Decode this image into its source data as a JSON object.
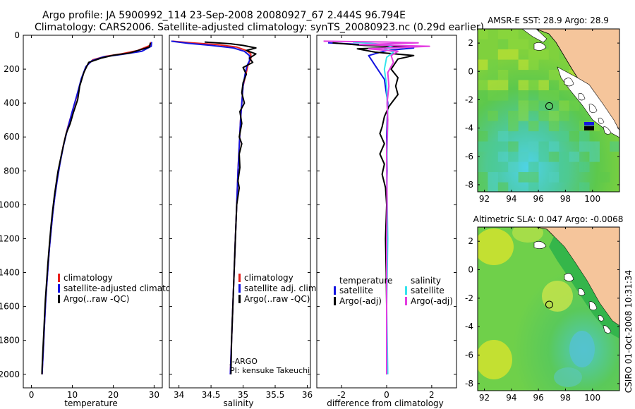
{
  "header": {
    "line1": "Argo profile: JA 5900992_114 23-Sep-2008 20080927_67 2.444S 96.794E",
    "line2": "Climatology: CARS2006. Satellite-adjusted climatology: synTS_20080923.nc (0.29d earlier)"
  },
  "side_label": "CSIRO 01-Oct-2008 10:31:34",
  "colors": {
    "red": "#e8211d",
    "blue": "#1414e0",
    "black": "#000000",
    "cyan": "#35e3ec",
    "magenta": "#e33de0",
    "land": "#f5c59b",
    "sea_green": "#4cc34c",
    "sea_yellow": "#dfe52b",
    "sea_cyan": "#4ed3e6"
  },
  "chart_data": [
    {
      "type": "line",
      "xlabel": "temperature",
      "xlim": [
        -2,
        32
      ],
      "ylim": [
        2080,
        0
      ],
      "xticks": [
        "0",
        "10",
        "20",
        "30"
      ],
      "yticks": [
        "0",
        "200",
        "400",
        "600",
        "800",
        "1000",
        "1200",
        "1400",
        "1600",
        "1800",
        "2000"
      ],
      "legend": [
        {
          "label": "climatology",
          "color": "#e8211d"
        },
        {
          "label": "satellite-adjusted climatology",
          "color": "#1414e0"
        },
        {
          "label": "Argo(..raw -QC)",
          "color": "#000000"
        }
      ],
      "series": [
        {
          "name": "climatology",
          "color": "#e8211d",
          "points": [
            [
              29.2,
              40
            ],
            [
              29.0,
              60
            ],
            [
              26,
              90
            ],
            [
              22,
              110
            ],
            [
              18,
              125
            ],
            [
              15,
              145
            ],
            [
              13.5,
              180
            ],
            [
              12.3,
              250
            ],
            [
              11.2,
              350
            ],
            [
              10.0,
              450
            ],
            [
              8.8,
              550
            ],
            [
              7.8,
              650
            ],
            [
              7.0,
              750
            ],
            [
              6.3,
              850
            ],
            [
              5.7,
              950
            ],
            [
              5.2,
              1050
            ],
            [
              4.8,
              1150
            ],
            [
              4.4,
              1250
            ],
            [
              4.1,
              1350
            ],
            [
              3.8,
              1450
            ],
            [
              3.5,
              1550
            ],
            [
              3.3,
              1650
            ],
            [
              3.1,
              1750
            ],
            [
              2.9,
              1850
            ],
            [
              2.7,
              1950
            ],
            [
              2.6,
              2000
            ]
          ]
        },
        {
          "name": "satellite-adjusted climatology",
          "color": "#1414e0",
          "points": [
            [
              29.4,
              40
            ],
            [
              29.3,
              65
            ],
            [
              27,
              95
            ],
            [
              22,
              113
            ],
            [
              17.5,
              128
            ],
            [
              14.8,
              150
            ],
            [
              13.3,
              185
            ],
            [
              12.2,
              255
            ],
            [
              11.1,
              355
            ],
            [
              9.9,
              455
            ],
            [
              8.8,
              555
            ],
            [
              7.8,
              655
            ],
            [
              7.0,
              755
            ],
            [
              6.3,
              855
            ],
            [
              5.7,
              955
            ],
            [
              5.2,
              1055
            ],
            [
              4.8,
              1155
            ],
            [
              4.4,
              1255
            ],
            [
              4.1,
              1355
            ],
            [
              3.8,
              1455
            ],
            [
              3.5,
              1555
            ],
            [
              3.3,
              1655
            ],
            [
              3.1,
              1755
            ],
            [
              2.9,
              1855
            ],
            [
              2.7,
              1955
            ],
            [
              2.6,
              2000
            ]
          ]
        },
        {
          "name": "Argo(..raw -QC)",
          "color": "#000000",
          "points": [
            [
              29.1,
              45
            ],
            [
              28.8,
              70
            ],
            [
              24,
              105
            ],
            [
              20,
              118
            ],
            [
              17,
              135
            ],
            [
              14,
              160
            ],
            [
              12.8,
              220
            ],
            [
              11.8,
              300
            ],
            [
              11.3,
              380
            ],
            [
              10.2,
              460
            ],
            [
              9.5,
              520
            ],
            [
              8.5,
              580
            ],
            [
              7.9,
              640
            ],
            [
              7.2,
              720
            ],
            [
              6.5,
              800
            ],
            [
              6.0,
              880
            ],
            [
              5.6,
              950
            ],
            [
              5.2,
              1030
            ],
            [
              4.8,
              1120
            ],
            [
              4.4,
              1230
            ],
            [
              4.0,
              1350
            ],
            [
              3.7,
              1460
            ],
            [
              3.4,
              1560
            ],
            [
              3.2,
              1660
            ],
            [
              3.0,
              1760
            ],
            [
              2.8,
              1860
            ],
            [
              2.6,
              1960
            ],
            [
              2.55,
              2000
            ]
          ]
        }
      ]
    },
    {
      "type": "line",
      "xlabel": "salinity",
      "xlim": [
        33.85,
        36.05
      ],
      "ylim": [
        2080,
        0
      ],
      "xticks": [
        "34",
        "34.5",
        "35",
        "35.5",
        "36"
      ],
      "legend": [
        {
          "label": "climatology",
          "color": "#e8211d"
        },
        {
          "label": "satellite adj. clim.",
          "color": "#1414e0"
        },
        {
          "label": "Argo(..raw -QC)",
          "color": "#000000"
        }
      ],
      "annotation": [
        "J-ARGO",
        "PI: kensuke Takeuchi"
      ],
      "series": [
        {
          "name": "climatology",
          "color": "#e8211d",
          "points": [
            [
              33.9,
              35
            ],
            [
              34.2,
              45
            ],
            [
              34.6,
              55
            ],
            [
              34.9,
              70
            ],
            [
              35.05,
              90
            ],
            [
              35.12,
              110
            ],
            [
              35.12,
              140
            ],
            [
              35.08,
              170
            ],
            [
              35.05,
              220
            ],
            [
              35.0,
              300
            ],
            [
              34.98,
              400
            ],
            [
              34.96,
              500
            ],
            [
              34.94,
              650
            ],
            [
              34.92,
              800
            ],
            [
              34.9,
              1000
            ],
            [
              34.88,
              1200
            ],
            [
              34.86,
              1400
            ],
            [
              34.84,
              1600
            ],
            [
              34.82,
              1800
            ],
            [
              34.8,
              2000
            ]
          ]
        },
        {
          "name": "satellite adj. clim.",
          "color": "#1414e0",
          "points": [
            [
              33.88,
              35
            ],
            [
              34.15,
              48
            ],
            [
              34.5,
              60
            ],
            [
              34.85,
              75
            ],
            [
              35.02,
              95
            ],
            [
              35.1,
              120
            ],
            [
              35.1,
              150
            ],
            [
              35.06,
              180
            ],
            [
              35.03,
              230
            ],
            [
              35.0,
              300
            ],
            [
              34.98,
              400
            ],
            [
              34.96,
              500
            ],
            [
              34.94,
              650
            ],
            [
              34.92,
              800
            ],
            [
              34.9,
              1000
            ],
            [
              34.88,
              1200
            ],
            [
              34.86,
              1400
            ],
            [
              34.84,
              1600
            ],
            [
              34.82,
              1800
            ],
            [
              34.8,
              2000
            ]
          ]
        },
        {
          "name": "Argo(..raw -QC)",
          "color": "#000000",
          "points": [
            [
              34.4,
              40
            ],
            [
              34.8,
              50
            ],
            [
              35.0,
              60
            ],
            [
              35.2,
              75
            ],
            [
              35.05,
              90
            ],
            [
              35.2,
              110
            ],
            [
              35.1,
              135
            ],
            [
              35.15,
              160
            ],
            [
              35.0,
              190
            ],
            [
              35.05,
              230
            ],
            [
              35.0,
              280
            ],
            [
              34.98,
              340
            ],
            [
              35.02,
              400
            ],
            [
              34.95,
              450
            ],
            [
              34.98,
              520
            ],
            [
              34.94,
              600
            ],
            [
              34.98,
              640
            ],
            [
              34.94,
              700
            ],
            [
              34.95,
              780
            ],
            [
              34.92,
              860
            ],
            [
              34.94,
              900
            ],
            [
              34.9,
              1000
            ],
            [
              34.88,
              1200
            ],
            [
              34.86,
              1400
            ],
            [
              34.84,
              1600
            ],
            [
              34.82,
              1800
            ],
            [
              34.81,
              2000
            ]
          ]
        }
      ]
    },
    {
      "type": "line",
      "xlabel": "difference from climatology",
      "xlim": [
        -3.1,
        3.1
      ],
      "ylim": [
        2080,
        0
      ],
      "xticks": [
        "-2",
        "0",
        "2"
      ],
      "legend_titles": [
        "temperature",
        "salinity"
      ],
      "legend": [
        {
          "label": "satellite",
          "color": "#1414e0",
          "group": "temperature"
        },
        {
          "label": "Argo(-adj)",
          "color": "#000000",
          "group": "temperature"
        },
        {
          "label": "satellite",
          "color": "#35e3ec",
          "group": "salinity"
        },
        {
          "label": "Argo(-adj)",
          "color": "#e33de0",
          "group": "salinity"
        }
      ],
      "series": [
        {
          "name": "temperature satellite",
          "color": "#1414e0",
          "points": [
            [
              -2.6,
              45
            ],
            [
              -1,
              55
            ],
            [
              0.8,
              65
            ],
            [
              1.2,
              75
            ],
            [
              0,
              90
            ],
            [
              -0.8,
              120
            ],
            [
              -0.5,
              180
            ],
            [
              -0.1,
              260
            ],
            [
              0.05,
              400
            ],
            [
              0.0,
              600
            ],
            [
              0.02,
              800
            ],
            [
              0.0,
              1000
            ],
            [
              0.0,
              1500
            ],
            [
              0.0,
              2000
            ]
          ]
        },
        {
          "name": "temperature Argo(-adj)",
          "color": "#000000",
          "points": [
            [
              -2.4,
              45
            ],
            [
              -1,
              60
            ],
            [
              1,
              70
            ],
            [
              -1.3,
              80
            ],
            [
              -0.5,
              100
            ],
            [
              1.2,
              120
            ],
            [
              0.5,
              140
            ],
            [
              0.2,
              200
            ],
            [
              0.5,
              250
            ],
            [
              0.4,
              300
            ],
            [
              0.5,
              350
            ],
            [
              0.1,
              420
            ],
            [
              -0.1,
              480
            ],
            [
              -0.2,
              540
            ],
            [
              -0.3,
              580
            ],
            [
              -0.1,
              640
            ],
            [
              -0.3,
              700
            ],
            [
              -0.1,
              760
            ],
            [
              -0.2,
              820
            ],
            [
              -0.05,
              900
            ],
            [
              0.0,
              1000
            ],
            [
              -0.05,
              1200
            ],
            [
              -0.02,
              1400
            ],
            [
              0.0,
              1600
            ],
            [
              0.0,
              2000
            ]
          ]
        },
        {
          "name": "salinity satellite",
          "color": "#35e3ec",
          "points": [
            [
              -1.5,
              40
            ],
            [
              -0.5,
              50
            ],
            [
              0.3,
              60
            ],
            [
              -0.1,
              80
            ],
            [
              0.3,
              100
            ],
            [
              0.0,
              130
            ],
            [
              -0.1,
              200
            ],
            [
              0.0,
              300
            ],
            [
              0.05,
              500
            ],
            [
              0.0,
              800
            ],
            [
              0.05,
              1200
            ],
            [
              0.0,
              1600
            ],
            [
              0.05,
              2000
            ]
          ]
        },
        {
          "name": "salinity Argo(-adj)",
          "color": "#e33de0",
          "points": [
            [
              -2.8,
              35
            ],
            [
              0,
              40
            ],
            [
              1.4,
              45
            ],
            [
              -1.2,
              55
            ],
            [
              1.9,
              65
            ],
            [
              -0.8,
              80
            ],
            [
              0.5,
              95
            ],
            [
              0.2,
              120
            ],
            [
              0.3,
              160
            ],
            [
              0.05,
              220
            ],
            [
              0.1,
              300
            ],
            [
              0.02,
              400
            ],
            [
              0.05,
              500
            ],
            [
              0.0,
              700
            ],
            [
              0.02,
              1000
            ],
            [
              0.0,
              1200
            ],
            [
              0.0,
              2000
            ]
          ]
        }
      ]
    },
    {
      "type": "heatmap",
      "title": "AMSR-E SST: 28.9 Argo: 28.9",
      "xlim": [
        91.5,
        102
      ],
      "ylim": [
        -8.5,
        3
      ],
      "xticks": [
        "92",
        "94",
        "96",
        "98",
        "100"
      ],
      "yticks": [
        "2",
        "0",
        "-2",
        "-4",
        "-6",
        "-8"
      ],
      "marker": [
        96.8,
        -2.45
      ],
      "argo_value": 28.9,
      "satellite_value": 28.9
    },
    {
      "type": "heatmap",
      "title": "Altimetric SLA: 0.047 Argo: -0.0068",
      "xlim": [
        91.5,
        102
      ],
      "ylim": [
        -8.5,
        3
      ],
      "xticks": [
        "92",
        "94",
        "96",
        "98",
        "100"
      ],
      "yticks": [
        "2",
        "0",
        "-2",
        "-4",
        "-6",
        "-8"
      ],
      "marker": [
        96.8,
        -2.45
      ],
      "argo_value": -0.0068,
      "satellite_value": 0.047
    }
  ]
}
